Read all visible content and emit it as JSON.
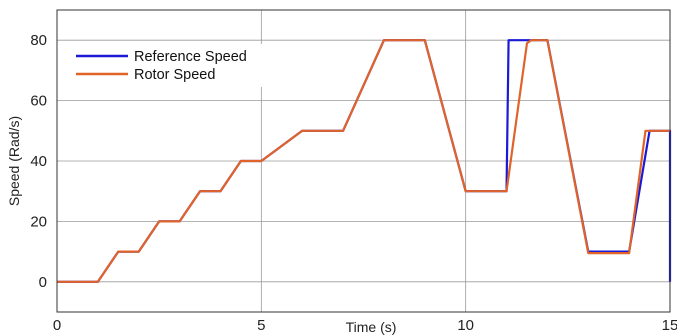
{
  "chart_data": {
    "type": "line",
    "xlabel": "Time (s)",
    "ylabel": "Speed (Rad/s)",
    "xlim": [
      0,
      15
    ],
    "ylim": [
      -10,
      90
    ],
    "xticks": [
      0,
      5,
      10,
      15
    ],
    "yticks": [
      0,
      20,
      40,
      60,
      80
    ],
    "grid": true,
    "legend_position": "top-left",
    "series": [
      {
        "name": "Reference Speed",
        "color": "#1a1ad6",
        "x": [
          0,
          1,
          1.5,
          2,
          2.5,
          3,
          3.5,
          4,
          4.5,
          5,
          6,
          7,
          8,
          9,
          10,
          11,
          11.05,
          11.5,
          12,
          13,
          14,
          14.5,
          15,
          15
        ],
        "y": [
          0,
          0,
          10,
          10,
          20,
          20,
          30,
          30,
          40,
          40,
          50,
          50,
          80,
          80,
          30,
          30,
          80,
          80,
          80,
          10,
          10,
          50,
          50,
          0
        ]
      },
      {
        "name": "Rotor Speed",
        "color": "#e0632a",
        "x": [
          0,
          1,
          1.5,
          2,
          2.5,
          3,
          3.5,
          4,
          4.5,
          5,
          6,
          7,
          8,
          9,
          10,
          11,
          11.5,
          11.6,
          12,
          13,
          14,
          14.4,
          15
        ],
        "y": [
          0,
          0,
          10,
          10,
          20,
          20,
          30,
          30,
          40,
          40,
          50,
          50,
          80,
          80,
          30,
          30,
          79,
          80,
          80,
          9.5,
          9.5,
          50,
          50
        ]
      }
    ]
  }
}
